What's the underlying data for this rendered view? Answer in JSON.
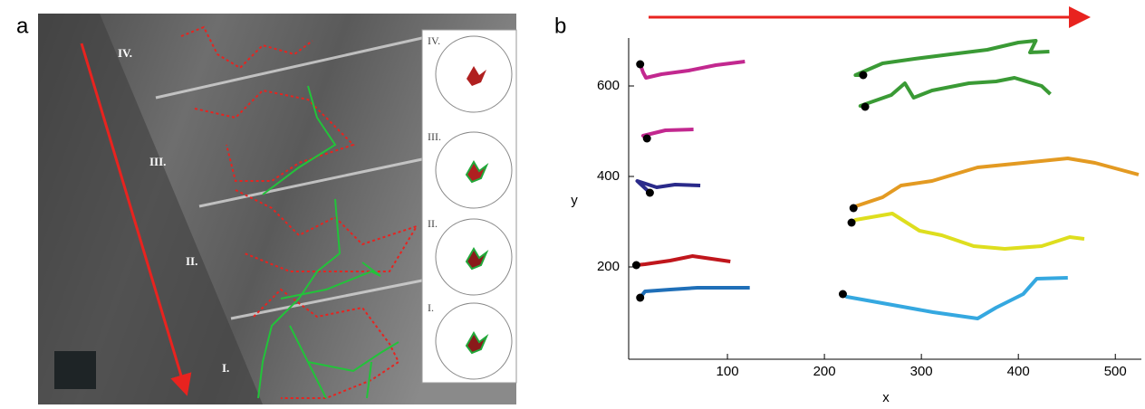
{
  "panel_a": {
    "label": "a",
    "region_labels": [
      "IV.",
      "III.",
      "II.",
      "I."
    ],
    "inset_labels": [
      "IV.",
      "III.",
      "II.",
      "I."
    ]
  },
  "chart_data": {
    "type": "line",
    "panel_label": "b",
    "x_label": "x",
    "y_label": "y",
    "xlim": [
      0,
      525
    ],
    "ylim": [
      0,
      700
    ],
    "xticks": [
      100,
      200,
      300,
      400,
      500
    ],
    "yticks": [
      200,
      400,
      600
    ],
    "grid": false,
    "series": [
      {
        "color": "#c2288f",
        "x": [
          10,
          13,
          16,
          32,
          60,
          88,
          118
        ],
        "y": [
          648,
          630,
          618,
          626,
          634,
          646,
          654
        ]
      },
      {
        "color": "#c2288f",
        "x": [
          17,
          13,
          36,
          65
        ],
        "y": [
          484,
          490,
          502,
          504
        ]
      },
      {
        "color": "#2a2a8a",
        "x": [
          20,
          7,
          27,
          46,
          72
        ],
        "y": [
          364,
          390,
          376,
          382,
          380
        ]
      },
      {
        "color": "#c0161c",
        "x": [
          6,
          15,
          41,
          64,
          103
        ],
        "y": [
          204,
          206,
          214,
          224,
          212
        ]
      },
      {
        "color": "#1f6fb8",
        "x": [
          10,
          15,
          41,
          69,
          123
        ],
        "y": [
          132,
          146,
          150,
          154,
          154
        ]
      },
      {
        "color": "#3a9a35",
        "x": [
          240,
          232,
          260,
          293,
          330,
          368,
          400,
          418,
          412,
          432
        ],
        "y": [
          624,
          624,
          650,
          660,
          670,
          680,
          696,
          700,
          674,
          676
        ]
      },
      {
        "color": "#3a9a35",
        "x": [
          242,
          237,
          269,
          283,
          292,
          311,
          349,
          377,
          396,
          424,
          433
        ],
        "y": [
          554,
          556,
          580,
          606,
          574,
          590,
          606,
          610,
          618,
          600,
          582
        ]
      },
      {
        "color": "#e39a22",
        "x": [
          230,
          232,
          260,
          279,
          311,
          358,
          405,
          451,
          479,
          524
        ],
        "y": [
          330,
          334,
          354,
          380,
          390,
          420,
          430,
          440,
          430,
          404
        ]
      },
      {
        "color": "#dede1e",
        "x": [
          228,
          232,
          270,
          298,
          321,
          354,
          386,
          424,
          453,
          468
        ],
        "y": [
          298,
          304,
          318,
          280,
          270,
          246,
          240,
          246,
          266,
          262
        ]
      },
      {
        "color": "#35a8e0",
        "x": [
          219,
          223,
          265,
          312,
          358,
          377,
          405,
          419,
          451
        ],
        "y": [
          140,
          134,
          118,
          100,
          86,
          110,
          140,
          174,
          176
        ]
      }
    ]
  }
}
